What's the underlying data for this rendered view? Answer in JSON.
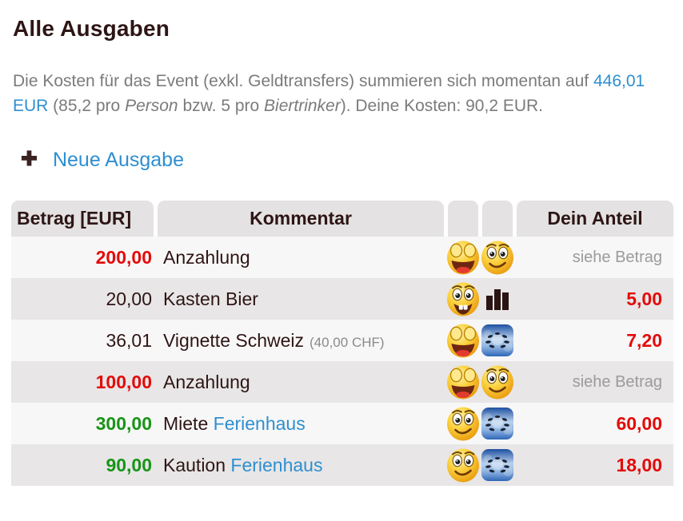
{
  "header": {
    "title": "Alle Ausgaben"
  },
  "intro": {
    "runs": [
      {
        "t": "Die Kosten für das Event (exkl. Geldtransfers) summieren sich momentan auf ",
        "s": "text"
      },
      {
        "t": "446,01 EUR",
        "s": "link"
      },
      {
        "t": " (85,2 pro ",
        "s": "text"
      },
      {
        "t": "Person",
        "s": "italic"
      },
      {
        "t": " bzw. 5 pro ",
        "s": "text"
      },
      {
        "t": "Biertrinker",
        "s": "italic"
      },
      {
        "t": "). Deine Kosten: 90,2 EUR.",
        "s": "text"
      }
    ]
  },
  "actions": {
    "new_expense_label": "Neue Ausgabe",
    "plus_icon": "plus-icon"
  },
  "table": {
    "headers": {
      "amount": "Betrag [EUR]",
      "comment": "Kommentar",
      "share": "Dein Anteil"
    },
    "rows": [
      {
        "amount": "200,00",
        "amount_style": "red",
        "comment": "Anzahlung",
        "extra": "",
        "link": "",
        "icons": [
          "laugh-emoji",
          "smile-emoji"
        ],
        "share": "siehe Betrag",
        "share_style": "muted"
      },
      {
        "amount": "20,00",
        "amount_style": "dark",
        "comment": "Kasten Bier",
        "extra": "",
        "link": "",
        "icons": [
          "grin-emoji",
          "bar-chart-icon"
        ],
        "share": "5,00",
        "share_style": "red"
      },
      {
        "amount": "36,01",
        "amount_style": "dark",
        "comment": "Vignette Schweiz",
        "extra": "(40,00 CHF)",
        "link": "",
        "icons": [
          "laugh-emoji",
          "photo-thumbnail"
        ],
        "share": "7,20",
        "share_style": "red"
      },
      {
        "amount": "100,00",
        "amount_style": "red",
        "comment": "Anzahlung",
        "extra": "",
        "link": "",
        "icons": [
          "laugh-emoji",
          "smile-emoji"
        ],
        "share": "siehe Betrag",
        "share_style": "muted"
      },
      {
        "amount": "300,00",
        "amount_style": "green",
        "comment": "Miete",
        "extra": "",
        "link": "Ferienhaus",
        "icons": [
          "smile-emoji",
          "photo-thumbnail"
        ],
        "share": "60,00",
        "share_style": "red"
      },
      {
        "amount": "90,00",
        "amount_style": "green",
        "comment": "Kaution",
        "extra": "",
        "link": "Ferienhaus",
        "icons": [
          "smile-emoji",
          "photo-thumbnail"
        ],
        "share": "18,00",
        "share_style": "red"
      }
    ]
  },
  "colors": {
    "accent_blue": "#2e8fd0",
    "amount_red": "#e30b0b",
    "amount_green": "#189418",
    "dark_text": "#2e1515",
    "body_gray": "#7b7b7b",
    "muted_gray": "#9b9b9b",
    "header_bg": "#e4e2e2",
    "row_light": "#f8f7f7",
    "row_alt": "#e8e6e6",
    "plus_maroon": "#3b2222"
  }
}
